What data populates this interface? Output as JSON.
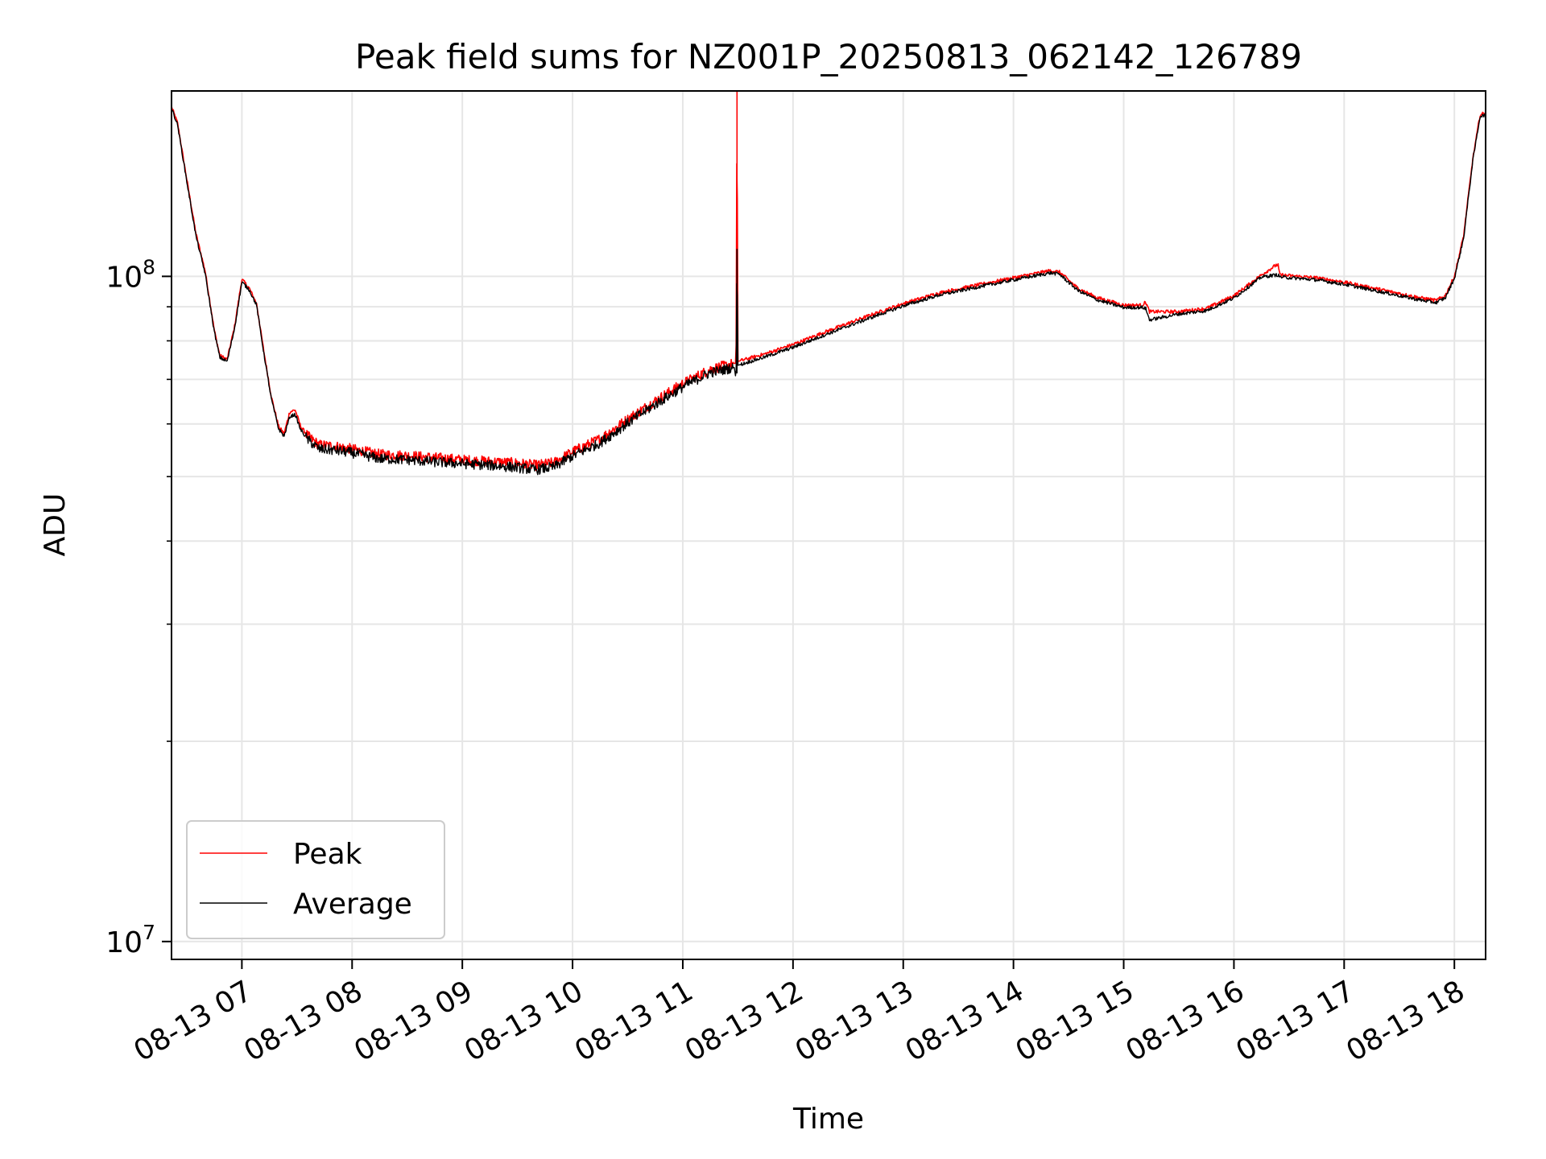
{
  "chart_data": {
    "type": "line",
    "title": "Peak field sums for NZ001P_20250813_062142_126789",
    "xlabel": "Time",
    "ylabel": "ADU",
    "x_scale": "time",
    "y_scale": "log",
    "xlim": [
      "2025-08-13 06:21:42",
      "2025-08-13 18:17:00"
    ],
    "ylim": [
      9400000,
      190000000
    ],
    "x_ticks": [
      {
        "t": "2025-08-13 07:00",
        "label": "08-13 07"
      },
      {
        "t": "2025-08-13 08:00",
        "label": "08-13 08"
      },
      {
        "t": "2025-08-13 09:00",
        "label": "08-13 09"
      },
      {
        "t": "2025-08-13 10:00",
        "label": "08-13 10"
      },
      {
        "t": "2025-08-13 11:00",
        "label": "08-13 11"
      },
      {
        "t": "2025-08-13 12:00",
        "label": "08-13 12"
      },
      {
        "t": "2025-08-13 13:00",
        "label": "08-13 13"
      },
      {
        "t": "2025-08-13 14:00",
        "label": "08-13 14"
      },
      {
        "t": "2025-08-13 15:00",
        "label": "08-13 15"
      },
      {
        "t": "2025-08-13 16:00",
        "label": "08-13 16"
      },
      {
        "t": "2025-08-13 17:00",
        "label": "08-13 17"
      },
      {
        "t": "2025-08-13 18:00",
        "label": "08-13 18"
      }
    ],
    "y_major_ticks": [
      {
        "v": 10000000,
        "base": "10",
        "exp": "7"
      },
      {
        "v": 100000000,
        "base": "10",
        "exp": "8"
      }
    ],
    "y_minor_ticks": [
      20000000,
      30000000,
      40000000,
      50000000,
      60000000,
      70000000,
      80000000,
      90000000
    ],
    "grid": true,
    "legend": "lower-left",
    "series": [
      {
        "name": "Peak",
        "color": "#ff0000",
        "points": [
          [
            "2025-08-13 06:21:42",
            180000000
          ],
          [
            "2025-08-13 06:25",
            170000000
          ],
          [
            "2025-08-13 06:30",
            140000000
          ],
          [
            "2025-08-13 06:35",
            116000000
          ],
          [
            "2025-08-13 06:40",
            102000000
          ],
          [
            "2025-08-13 06:45",
            83000000
          ],
          [
            "2025-08-13 06:48",
            76000000
          ],
          [
            "2025-08-13 06:52",
            75000000
          ],
          [
            "2025-08-13 06:56",
            84000000
          ],
          [
            "2025-08-13 07:00",
            99000000
          ],
          [
            "2025-08-13 07:04",
            96000000
          ],
          [
            "2025-08-13 07:08",
            91000000
          ],
          [
            "2025-08-13 07:12",
            77000000
          ],
          [
            "2025-08-13 07:16",
            66000000
          ],
          [
            "2025-08-13 07:20",
            59500000
          ],
          [
            "2025-08-13 07:23",
            58000000
          ],
          [
            "2025-08-13 07:26",
            62500000
          ],
          [
            "2025-08-13 07:29",
            63000000
          ],
          [
            "2025-08-13 07:32",
            59500000
          ],
          [
            "2025-08-13 07:36",
            57500000
          ],
          [
            "2025-08-13 07:42",
            55800000
          ],
          [
            "2025-08-13 07:50",
            55600000
          ],
          [
            "2025-08-13 08:00",
            55000000
          ],
          [
            "2025-08-13 08:15",
            54000000
          ],
          [
            "2025-08-13 08:30",
            53800000
          ],
          [
            "2025-08-13 08:45",
            53400000
          ],
          [
            "2025-08-13 09:00",
            53000000
          ],
          [
            "2025-08-13 09:15",
            52700000
          ],
          [
            "2025-08-13 09:30",
            52400000
          ],
          [
            "2025-08-13 09:40",
            52000000
          ],
          [
            "2025-08-13 09:50",
            52500000
          ],
          [
            "2025-08-13 10:00",
            54500000
          ],
          [
            "2025-08-13 10:15",
            57000000
          ],
          [
            "2025-08-13 10:30",
            61000000
          ],
          [
            "2025-08-13 10:45",
            65000000
          ],
          [
            "2025-08-13 11:00",
            69000000
          ],
          [
            "2025-08-13 11:15",
            72500000
          ],
          [
            "2025-08-13 11:28",
            74000000
          ],
          [
            "2025-08-13 11:29",
            74000000
          ],
          [
            "2025-08-13 11:29:30",
            190000000
          ],
          [
            "2025-08-13 11:30",
            74500000
          ],
          [
            "2025-08-13 11:45",
            76500000
          ],
          [
            "2025-08-13 12:00",
            79000000
          ],
          [
            "2025-08-13 12:20",
            83000000
          ],
          [
            "2025-08-13 12:40",
            87000000
          ],
          [
            "2025-08-13 13:00",
            91000000
          ],
          [
            "2025-08-13 13:20",
            94500000
          ],
          [
            "2025-08-13 13:40",
            97000000
          ],
          [
            "2025-08-13 14:00",
            99500000
          ],
          [
            "2025-08-13 14:20",
            102000000
          ],
          [
            "2025-08-13 14:25",
            101500000
          ],
          [
            "2025-08-13 14:35",
            96000000
          ],
          [
            "2025-08-13 14:45",
            93000000
          ],
          [
            "2025-08-13 15:00",
            90500000
          ],
          [
            "2025-08-13 15:10",
            90500000
          ],
          [
            "2025-08-13 15:12",
            91500000
          ],
          [
            "2025-08-13 15:14",
            88500000
          ],
          [
            "2025-08-13 15:30",
            88500000
          ],
          [
            "2025-08-13 15:45",
            89500000
          ],
          [
            "2025-08-13 16:00",
            93500000
          ],
          [
            "2025-08-13 16:15",
            100500000
          ],
          [
            "2025-08-13 16:23",
            104000000
          ],
          [
            "2025-08-13 16:24",
            104000000
          ],
          [
            "2025-08-13 16:25",
            100500000
          ],
          [
            "2025-08-13 16:45",
            99500000
          ],
          [
            "2025-08-13 17:00",
            98000000
          ],
          [
            "2025-08-13 17:20",
            95500000
          ],
          [
            "2025-08-13 17:40",
            93000000
          ],
          [
            "2025-08-13 17:50",
            92000000
          ],
          [
            "2025-08-13 17:55",
            93500000
          ],
          [
            "2025-08-13 18:00",
            100000000
          ],
          [
            "2025-08-13 18:05",
            115000000
          ],
          [
            "2025-08-13 18:10",
            150000000
          ],
          [
            "2025-08-13 18:14",
            175000000
          ],
          [
            "2025-08-13 18:17",
            176000000
          ]
        ]
      },
      {
        "name": "Average",
        "color": "#000000",
        "points": [
          [
            "2025-08-13 06:21:42",
            179000000
          ],
          [
            "2025-08-13 06:25",
            169000000
          ],
          [
            "2025-08-13 06:30",
            139000000
          ],
          [
            "2025-08-13 06:35",
            115000000
          ],
          [
            "2025-08-13 06:40",
            101000000
          ],
          [
            "2025-08-13 06:45",
            82500000
          ],
          [
            "2025-08-13 06:48",
            75500000
          ],
          [
            "2025-08-13 06:52",
            74500000
          ],
          [
            "2025-08-13 06:56",
            83500000
          ],
          [
            "2025-08-13 07:00",
            98000000
          ],
          [
            "2025-08-13 07:04",
            95500000
          ],
          [
            "2025-08-13 07:08",
            90500000
          ],
          [
            "2025-08-13 07:12",
            76500000
          ],
          [
            "2025-08-13 07:16",
            65500000
          ],
          [
            "2025-08-13 07:20",
            59000000
          ],
          [
            "2025-08-13 07:23",
            57500000
          ],
          [
            "2025-08-13 07:26",
            61500000
          ],
          [
            "2025-08-13 07:29",
            62000000
          ],
          [
            "2025-08-13 07:32",
            58800000
          ],
          [
            "2025-08-13 07:36",
            56800000
          ],
          [
            "2025-08-13 07:42",
            55000000
          ],
          [
            "2025-08-13 07:50",
            54800000
          ],
          [
            "2025-08-13 08:00",
            54300000
          ],
          [
            "2025-08-13 08:15",
            53200000
          ],
          [
            "2025-08-13 08:30",
            53000000
          ],
          [
            "2025-08-13 08:45",
            52600000
          ],
          [
            "2025-08-13 09:00",
            52300000
          ],
          [
            "2025-08-13 09:15",
            52000000
          ],
          [
            "2025-08-13 09:30",
            51600000
          ],
          [
            "2025-08-13 09:40",
            51200000
          ],
          [
            "2025-08-13 09:50",
            51700000
          ],
          [
            "2025-08-13 10:00",
            53700000
          ],
          [
            "2025-08-13 10:15",
            56200000
          ],
          [
            "2025-08-13 10:30",
            60200000
          ],
          [
            "2025-08-13 10:45",
            64200000
          ],
          [
            "2025-08-13 11:00",
            68200000
          ],
          [
            "2025-08-13 11:15",
            71700000
          ],
          [
            "2025-08-13 11:28",
            73000000
          ],
          [
            "2025-08-13 11:29",
            70000000
          ],
          [
            "2025-08-13 11:29:30",
            110000000
          ],
          [
            "2025-08-13 11:30",
            73500000
          ],
          [
            "2025-08-13 11:45",
            75700000
          ],
          [
            "2025-08-13 12:00",
            78200000
          ],
          [
            "2025-08-13 12:20",
            82200000
          ],
          [
            "2025-08-13 12:40",
            86200000
          ],
          [
            "2025-08-13 13:00",
            90300000
          ],
          [
            "2025-08-13 13:20",
            93800000
          ],
          [
            "2025-08-13 13:40",
            96300000
          ],
          [
            "2025-08-13 14:00",
            98800000
          ],
          [
            "2025-08-13 14:20",
            101200000
          ],
          [
            "2025-08-13 14:25",
            100800000
          ],
          [
            "2025-08-13 14:35",
            95300000
          ],
          [
            "2025-08-13 14:45",
            92300000
          ],
          [
            "2025-08-13 15:00",
            89800000
          ],
          [
            "2025-08-13 15:10",
            89800000
          ],
          [
            "2025-08-13 15:12",
            89500000
          ],
          [
            "2025-08-13 15:14",
            86000000
          ],
          [
            "2025-08-13 15:30",
            87800000
          ],
          [
            "2025-08-13 15:45",
            88800000
          ],
          [
            "2025-08-13 16:00",
            92800000
          ],
          [
            "2025-08-13 16:15",
            99800000
          ],
          [
            "2025-08-13 16:23",
            100500000
          ],
          [
            "2025-08-13 16:24",
            100500000
          ],
          [
            "2025-08-13 16:25",
            99800000
          ],
          [
            "2025-08-13 16:45",
            98800000
          ],
          [
            "2025-08-13 17:00",
            97300000
          ],
          [
            "2025-08-13 17:20",
            94800000
          ],
          [
            "2025-08-13 17:40",
            92300000
          ],
          [
            "2025-08-13 17:50",
            91300000
          ],
          [
            "2025-08-13 17:55",
            92800000
          ],
          [
            "2025-08-13 18:00",
            99300000
          ],
          [
            "2025-08-13 18:05",
            114000000
          ],
          [
            "2025-08-13 18:10",
            149000000
          ],
          [
            "2025-08-13 18:14",
            174000000
          ],
          [
            "2025-08-13 18:17",
            175000000
          ]
        ]
      }
    ]
  }
}
